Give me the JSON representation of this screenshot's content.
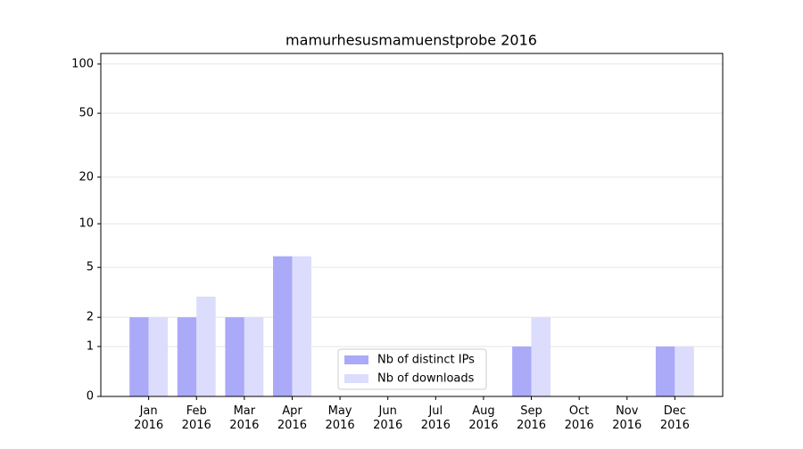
{
  "chart_data": {
    "type": "bar",
    "title": "mamurhesusmamuenstprobe 2016",
    "categories": [
      "Jan 2016",
      "Feb 2016",
      "Mar 2016",
      "Apr 2016",
      "May 2016",
      "Jun 2016",
      "Jul 2016",
      "Aug 2016",
      "Sep 2016",
      "Oct 2016",
      "Nov 2016",
      "Dec 2016"
    ],
    "series": [
      {
        "name": "Nb of distinct IPs",
        "color": "#aaaaf8",
        "values": [
          2,
          2,
          2,
          6,
          0,
          0,
          0,
          0,
          1,
          0,
          0,
          1
        ]
      },
      {
        "name": "Nb of downloads",
        "color": "#dcdcfc",
        "values": [
          2,
          3,
          2,
          6,
          0,
          0,
          0,
          0,
          2,
          0,
          0,
          1
        ]
      }
    ],
    "yscale": "log1p",
    "ylim": [
      0,
      116
    ],
    "yticks": [
      0,
      1,
      2,
      5,
      10,
      20,
      50,
      100
    ],
    "grid": true,
    "legend": "lower center"
  }
}
